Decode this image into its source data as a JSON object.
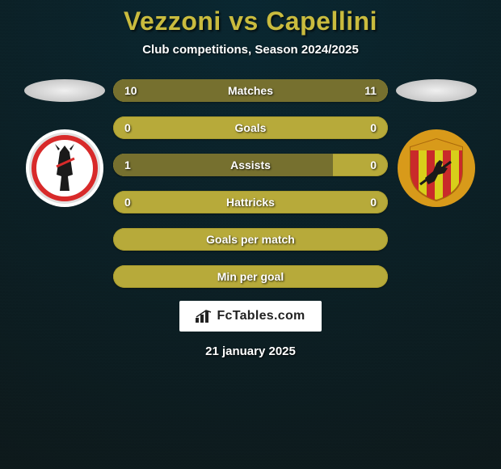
{
  "background": {
    "top_color": "#0a2832",
    "bottom_color": "#0e1a1c",
    "noise_overlay": "#000000"
  },
  "header": {
    "player1": "Vezzoni",
    "vs": "vs",
    "player2": "Capellini",
    "title_color": "#c9bb3e",
    "title_fontsize": 32,
    "subtitle": "Club competitions, Season 2024/2025",
    "subtitle_color": "#ffffff",
    "subtitle_fontsize": 15
  },
  "sides": {
    "left": {
      "oval_color": "#e8e8e8",
      "crest": {
        "outer_ring": "#ffffff",
        "inner_ring": "#d8d8d8",
        "accent": "#d82a2a",
        "figure": "#1a1a1a",
        "diameter": 100
      }
    },
    "right": {
      "oval_color": "#e8e8e8",
      "crest": {
        "shield_top": "#d89a1a",
        "shield_body_stripes": [
          "#d8cf1a",
          "#c92a2a"
        ],
        "witch": "#1a1a1a",
        "diameter": 100
      }
    }
  },
  "bars": {
    "track_color": "#b7aa3a",
    "track_outline": "#a79a2e",
    "fill_left_color": "#76702f",
    "fill_right_color": "#76702f",
    "text_color": "#ffffff",
    "label_fontsize": 14,
    "height": 28,
    "gap": 18,
    "items": [
      {
        "label": "Matches",
        "left": "10",
        "right": "11",
        "left_pct": 47,
        "right_pct": 53
      },
      {
        "label": "Goals",
        "left": "0",
        "right": "0",
        "left_pct": 0,
        "right_pct": 0
      },
      {
        "label": "Assists",
        "left": "1",
        "right": "0",
        "left_pct": 80,
        "right_pct": 0
      },
      {
        "label": "Hattricks",
        "left": "0",
        "right": "0",
        "left_pct": 0,
        "right_pct": 0
      },
      {
        "label": "Goals per match",
        "left": "",
        "right": "",
        "left_pct": 0,
        "right_pct": 0
      },
      {
        "label": "Min per goal",
        "left": "",
        "right": "",
        "left_pct": 0,
        "right_pct": 0
      }
    ]
  },
  "watermark": {
    "text": "FcTables.com",
    "background": "#ffffff",
    "text_color": "#222222",
    "fontsize": 16
  },
  "footer": {
    "date": "21 january 2025",
    "color": "#ffffff",
    "fontsize": 15
  }
}
